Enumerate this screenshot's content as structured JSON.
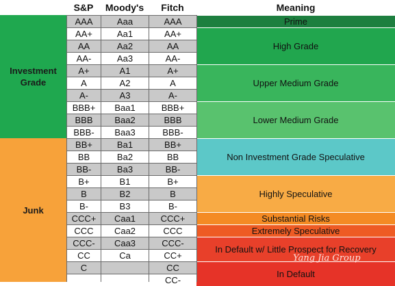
{
  "headers": {
    "sp": "S&P",
    "moodys": "Moody's",
    "fitch": "Fitch",
    "meaning": "Meaning"
  },
  "grade_groups": {
    "investment": [
      "Investment",
      "Grade"
    ],
    "junk": "Junk"
  },
  "colors": {
    "investment_green": "#1fa84f",
    "junk_orange": "#f7a23a",
    "row_grey": "#c9c9c9",
    "prime": "#1d7f3f",
    "high_grade": "#21a64e",
    "upper_medium": "#39b55c",
    "lower_medium": "#59c26e",
    "non_inv_speculative": "#5cc8c8",
    "highly_speculative": "#f8ab45",
    "substantial_risks": "#f48b24",
    "extremely_speculative": "#ee5b24",
    "in_default_little": "#e8402a",
    "in_default": "#e63328"
  },
  "rows": [
    {
      "sp": "AAA",
      "moodys": "Aaa",
      "fitch": "AAA"
    },
    {
      "sp": "AA+",
      "moodys": "Aa1",
      "fitch": "AA+"
    },
    {
      "sp": "AA",
      "moodys": "Aa2",
      "fitch": "AA"
    },
    {
      "sp": "AA-",
      "moodys": "Aa3",
      "fitch": "AA-"
    },
    {
      "sp": "A+",
      "moodys": "A1",
      "fitch": "A+"
    },
    {
      "sp": "A",
      "moodys": "A2",
      "fitch": "A"
    },
    {
      "sp": "A-",
      "moodys": "A3",
      "fitch": "A-"
    },
    {
      "sp": "BBB+",
      "moodys": "Baa1",
      "fitch": "BBB+"
    },
    {
      "sp": "BBB",
      "moodys": "Baa2",
      "fitch": "BBB"
    },
    {
      "sp": "BBB-",
      "moodys": "Baa3",
      "fitch": "BBB-"
    },
    {
      "sp": "BB+",
      "moodys": "Ba1",
      "fitch": "BB+"
    },
    {
      "sp": "BB",
      "moodys": "Ba2",
      "fitch": "BB"
    },
    {
      "sp": "BB-",
      "moodys": "Ba3",
      "fitch": "BB-"
    },
    {
      "sp": "B+",
      "moodys": "B1",
      "fitch": "B+"
    },
    {
      "sp": "B",
      "moodys": "B2",
      "fitch": "B"
    },
    {
      "sp": "B-",
      "moodys": "B3",
      "fitch": "B-"
    },
    {
      "sp": "CCC+",
      "moodys": "Caa1",
      "fitch": "CCC+"
    },
    {
      "sp": "CCC",
      "moodys": "Caa2",
      "fitch": "CCC"
    },
    {
      "sp": "CCC-",
      "moodys": "Caa3",
      "fitch": "CCC-"
    },
    {
      "sp": "CC",
      "moodys": "Ca",
      "fitch": "CC+"
    },
    {
      "sp": "C",
      "moodys": "",
      "fitch": "CC"
    },
    {
      "sp": "",
      "moodys": "",
      "fitch": "CC-"
    }
  ],
  "meanings": [
    {
      "label": "Prime",
      "color_key": "prime"
    },
    {
      "label": "High Grade",
      "color_key": "high_grade"
    },
    {
      "label": "Upper Medium Grade",
      "color_key": "upper_medium"
    },
    {
      "label": "Lower Medium Grade",
      "color_key": "lower_medium"
    },
    {
      "label": "Non Investment Grade Speculative",
      "color_key": "non_inv_speculative"
    },
    {
      "label": "Highly Speculative",
      "color_key": "highly_speculative"
    },
    {
      "label": "Substantial Risks",
      "color_key": "substantial_risks"
    },
    {
      "label": "Extremely Speculative",
      "color_key": "extremely_speculative"
    },
    {
      "label": "In Default w/ Little Prospect for Recovery",
      "color_key": "in_default_little"
    },
    {
      "label": "In Default",
      "color_key": "in_default"
    }
  ],
  "watermark": "Yang Jia Group"
}
